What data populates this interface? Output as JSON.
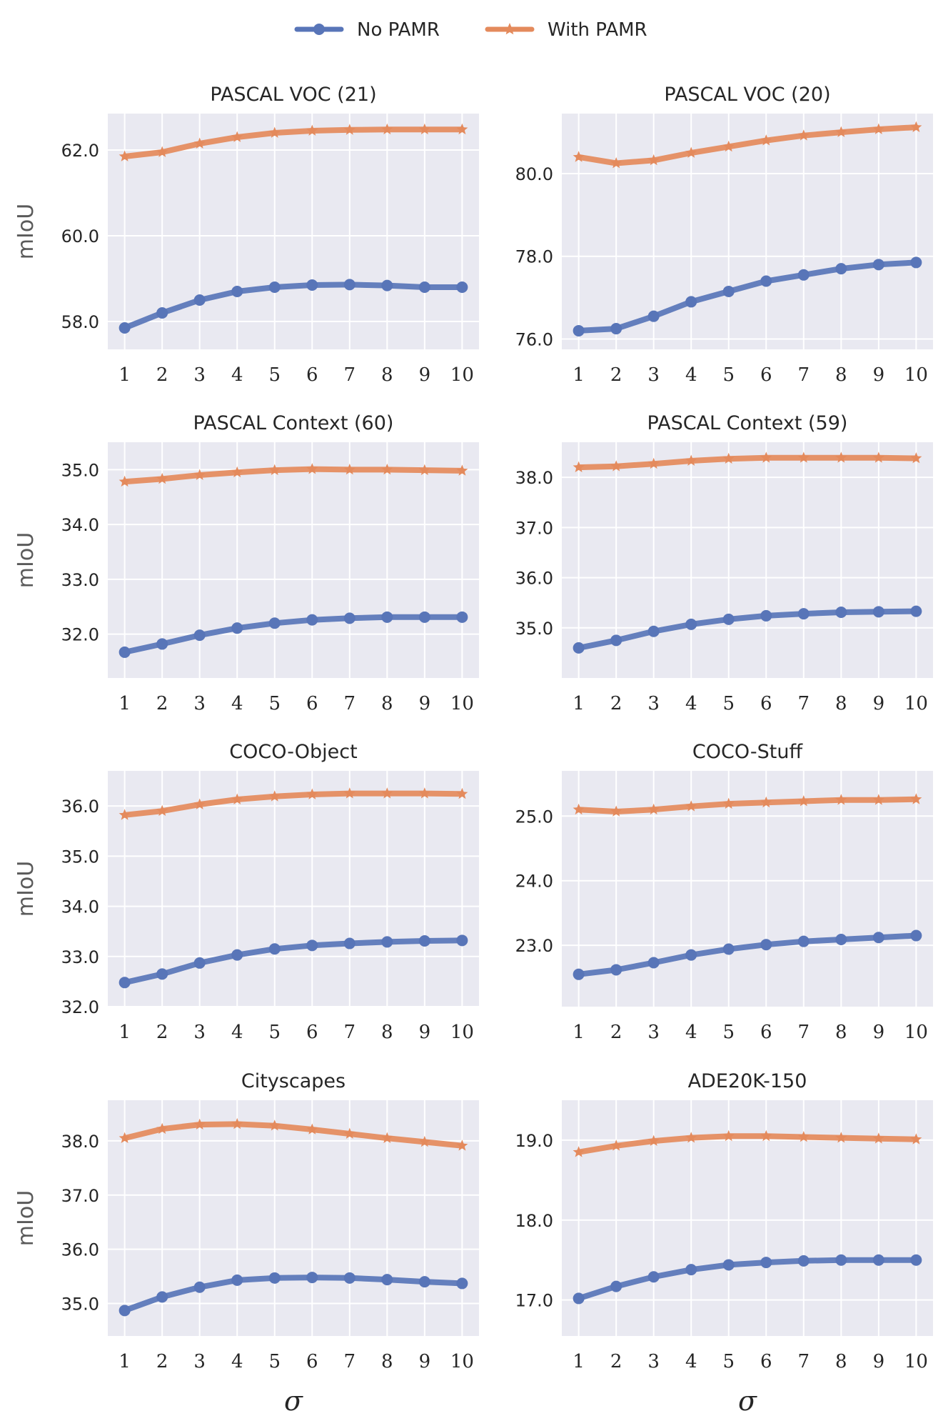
{
  "legend": {
    "entries": [
      {
        "label": "No PAMR",
        "color": "#5875b8",
        "marker": "circle"
      },
      {
        "label": "With PAMR",
        "color": "#e48a5c",
        "marker": "star"
      }
    ]
  },
  "colors": {
    "no_pamr": "#5875b8",
    "with_pamr": "#e48a5c",
    "panel_bg": "#e9e9f1",
    "grid": "#ffffff"
  },
  "axis_labels": {
    "y": "mIoU",
    "x": "σ"
  },
  "chart_data": [
    {
      "type": "line",
      "title": "PASCAL VOC (21)",
      "ylabel": "mIoU",
      "xlabel": "",
      "x": [
        1,
        2,
        3,
        4,
        5,
        6,
        7,
        8,
        9,
        10
      ],
      "ylim": [
        57.35,
        62.85
      ],
      "yticks": [
        58.0,
        60.0,
        62.0
      ],
      "ytick_labels": [
        "58.0",
        "60.0",
        "62.0"
      ],
      "series": [
        {
          "name": "No PAMR",
          "values": [
            57.85,
            58.2,
            58.5,
            58.7,
            58.8,
            58.85,
            58.86,
            58.84,
            58.8,
            58.8
          ]
        },
        {
          "name": "With PAMR",
          "values": [
            61.85,
            61.95,
            62.15,
            62.3,
            62.4,
            62.45,
            62.47,
            62.48,
            62.48,
            62.48
          ]
        }
      ]
    },
    {
      "type": "line",
      "title": "PASCAL VOC (20)",
      "ylabel": "",
      "xlabel": "",
      "x": [
        1,
        2,
        3,
        4,
        5,
        6,
        7,
        8,
        9,
        10
      ],
      "ylim": [
        75.75,
        81.45
      ],
      "yticks": [
        76.0,
        78.0,
        80.0
      ],
      "ytick_labels": [
        "76.0",
        "78.0",
        "80.0"
      ],
      "series": [
        {
          "name": "No PAMR",
          "values": [
            76.2,
            76.25,
            76.55,
            76.9,
            77.15,
            77.4,
            77.55,
            77.7,
            77.8,
            77.85
          ]
        },
        {
          "name": "With PAMR",
          "values": [
            80.4,
            80.25,
            80.32,
            80.5,
            80.65,
            80.8,
            80.92,
            81.0,
            81.07,
            81.12
          ]
        }
      ]
    },
    {
      "type": "line",
      "title": "PASCAL Context (60)",
      "ylabel": "mIoU",
      "xlabel": "",
      "x": [
        1,
        2,
        3,
        4,
        5,
        6,
        7,
        8,
        9,
        10
      ],
      "ylim": [
        31.2,
        35.5
      ],
      "yticks": [
        32.0,
        33.0,
        34.0,
        35.0
      ],
      "ytick_labels": [
        "32.0",
        "33.0",
        "34.0",
        "35.0"
      ],
      "series": [
        {
          "name": "No PAMR",
          "values": [
            31.67,
            31.82,
            31.98,
            32.11,
            32.2,
            32.26,
            32.29,
            32.31,
            32.31,
            32.31
          ]
        },
        {
          "name": "With PAMR",
          "values": [
            34.78,
            34.83,
            34.9,
            34.95,
            34.99,
            35.01,
            35.0,
            35.0,
            34.99,
            34.98
          ]
        }
      ]
    },
    {
      "type": "line",
      "title": "PASCAL Context (59)",
      "ylabel": "",
      "xlabel": "",
      "x": [
        1,
        2,
        3,
        4,
        5,
        6,
        7,
        8,
        9,
        10
      ],
      "ylim": [
        34.0,
        38.7
      ],
      "yticks": [
        35.0,
        36.0,
        37.0,
        38.0
      ],
      "ytick_labels": [
        "35.0",
        "36.0",
        "37.0",
        "38.0"
      ],
      "series": [
        {
          "name": "No PAMR",
          "values": [
            34.6,
            34.75,
            34.93,
            35.07,
            35.17,
            35.24,
            35.28,
            35.31,
            35.32,
            35.33
          ]
        },
        {
          "name": "With PAMR",
          "values": [
            38.2,
            38.22,
            38.27,
            38.33,
            38.37,
            38.39,
            38.39,
            38.39,
            38.39,
            38.38
          ]
        }
      ]
    },
    {
      "type": "line",
      "title": "COCO-Object",
      "ylabel": "mIoU",
      "xlabel": "",
      "x": [
        1,
        2,
        3,
        4,
        5,
        6,
        7,
        8,
        9,
        10
      ],
      "ylim": [
        32.0,
        36.7
      ],
      "yticks": [
        32.0,
        33.0,
        34.0,
        35.0,
        36.0
      ],
      "ytick_labels": [
        "32.0",
        "33.0",
        "34.0",
        "35.0",
        "36.0"
      ],
      "series": [
        {
          "name": "No PAMR",
          "values": [
            32.48,
            32.65,
            32.87,
            33.03,
            33.15,
            33.22,
            33.26,
            33.29,
            33.31,
            33.32
          ]
        },
        {
          "name": "With PAMR",
          "values": [
            35.82,
            35.9,
            36.03,
            36.13,
            36.19,
            36.23,
            36.25,
            36.25,
            36.25,
            36.24
          ]
        }
      ]
    },
    {
      "type": "line",
      "title": "COCO-Stuff",
      "ylabel": "",
      "xlabel": "",
      "x": [
        1,
        2,
        3,
        4,
        5,
        6,
        7,
        8,
        9,
        10
      ],
      "ylim": [
        22.05,
        25.7
      ],
      "yticks": [
        23.0,
        24.0,
        25.0
      ],
      "ytick_labels": [
        "23.0",
        "24.0",
        "25.0"
      ],
      "series": [
        {
          "name": "No PAMR",
          "values": [
            22.55,
            22.62,
            22.73,
            22.85,
            22.94,
            23.01,
            23.06,
            23.09,
            23.12,
            23.15
          ]
        },
        {
          "name": "With PAMR",
          "values": [
            25.1,
            25.07,
            25.1,
            25.15,
            25.19,
            25.21,
            25.23,
            25.25,
            25.25,
            25.26
          ]
        }
      ]
    },
    {
      "type": "line",
      "title": "Cityscapes",
      "ylabel": "mIoU",
      "xlabel": "σ",
      "x": [
        1,
        2,
        3,
        4,
        5,
        6,
        7,
        8,
        9,
        10
      ],
      "ylim": [
        34.4,
        38.75
      ],
      "yticks": [
        35.0,
        36.0,
        37.0,
        38.0
      ],
      "ytick_labels": [
        "35.0",
        "36.0",
        "37.0",
        "38.0"
      ],
      "series": [
        {
          "name": "No PAMR",
          "values": [
            34.87,
            35.12,
            35.3,
            35.43,
            35.47,
            35.48,
            35.47,
            35.44,
            35.4,
            35.37
          ]
        },
        {
          "name": "With PAMR",
          "values": [
            38.05,
            38.22,
            38.3,
            38.31,
            38.28,
            38.21,
            38.13,
            38.05,
            37.98,
            37.91
          ]
        }
      ]
    },
    {
      "type": "line",
      "title": "ADE20K-150",
      "ylabel": "",
      "xlabel": "σ",
      "x": [
        1,
        2,
        3,
        4,
        5,
        6,
        7,
        8,
        9,
        10
      ],
      "ylim": [
        16.55,
        19.5
      ],
      "yticks": [
        17.0,
        18.0,
        19.0
      ],
      "ytick_labels": [
        "17.0",
        "18.0",
        "19.0"
      ],
      "series": [
        {
          "name": "No PAMR",
          "values": [
            17.02,
            17.17,
            17.29,
            17.38,
            17.44,
            17.47,
            17.49,
            17.5,
            17.5,
            17.5
          ]
        },
        {
          "name": "With PAMR",
          "values": [
            18.85,
            18.93,
            18.99,
            19.03,
            19.05,
            19.05,
            19.04,
            19.03,
            19.02,
            19.01
          ]
        }
      ]
    }
  ]
}
